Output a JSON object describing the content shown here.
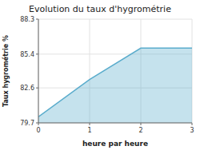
{
  "chart_data": {
    "type": "area",
    "title": "Evolution du taux d'hygrométrie",
    "xlabel": "heure par heure",
    "ylabel": "Taux hygrométrie %",
    "x": [
      0,
      1,
      2,
      3
    ],
    "values": [
      80.2,
      83.3,
      85.9,
      85.9
    ],
    "color": "#5aaccc",
    "xlim": [
      0,
      3
    ],
    "ylim": [
      79.7,
      88.3
    ],
    "xticks": [
      0,
      1,
      2,
      3
    ],
    "yticks": [
      79.7,
      82.6,
      85.4,
      88.3
    ],
    "grid": true
  }
}
